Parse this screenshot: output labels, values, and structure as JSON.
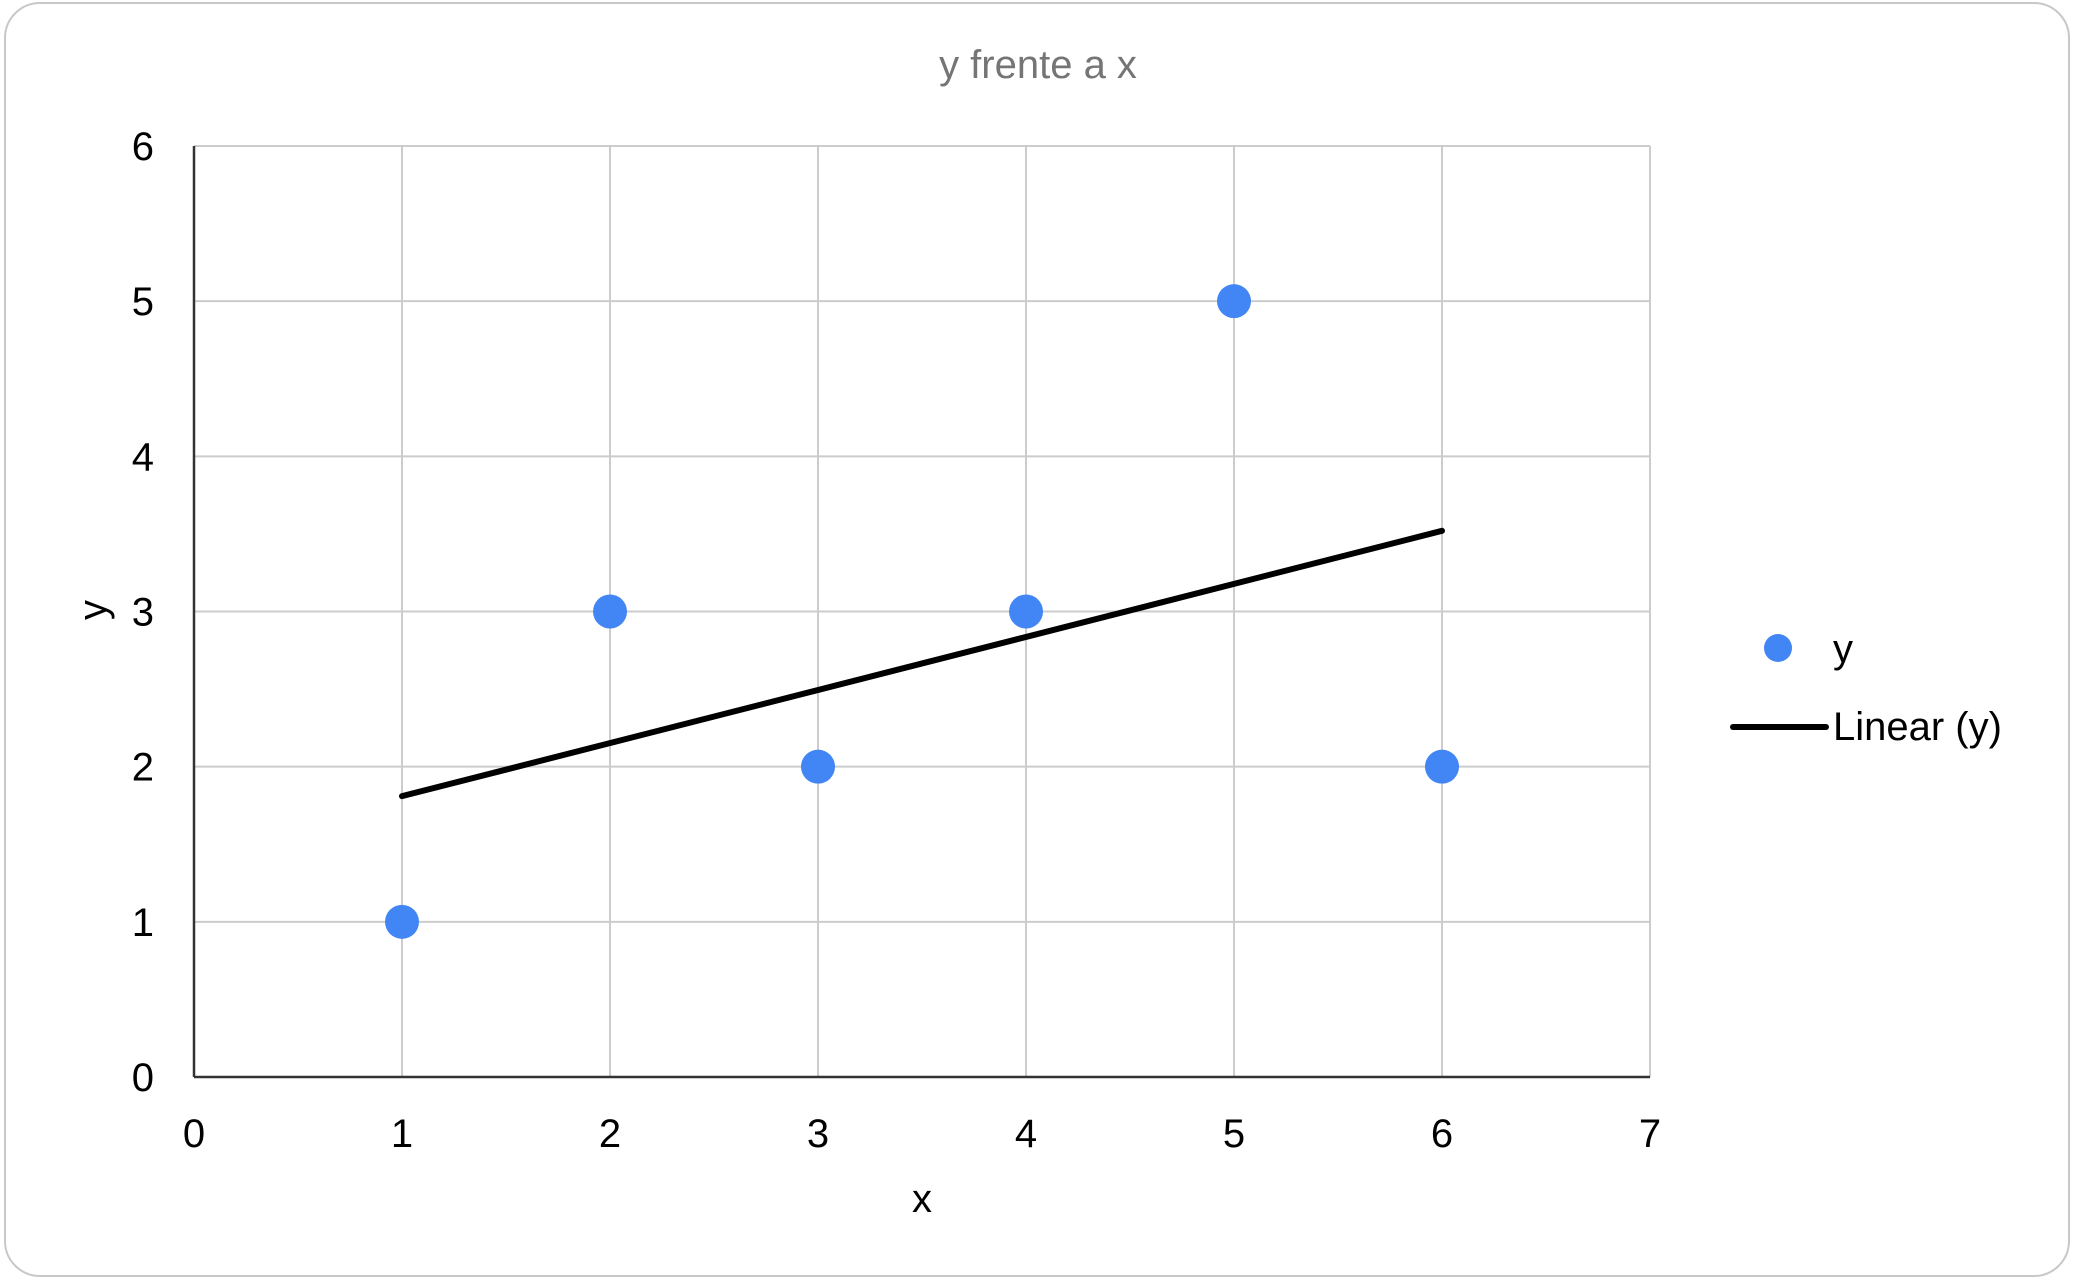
{
  "chart_data": {
    "type": "scatter",
    "title": "y frente a x",
    "xlabel": "x",
    "ylabel": "y",
    "xlim": [
      0,
      7
    ],
    "ylim": [
      0,
      6
    ],
    "xticks": [
      0,
      1,
      2,
      3,
      4,
      5,
      6,
      7
    ],
    "yticks": [
      0,
      1,
      2,
      3,
      4,
      5,
      6
    ],
    "grid": true,
    "legend_position": "right",
    "series": [
      {
        "name": "y",
        "kind": "scatter",
        "color": "#4285F4",
        "x": [
          1,
          2,
          3,
          4,
          5,
          6
        ],
        "y": [
          1,
          3,
          2,
          3,
          5,
          2
        ]
      },
      {
        "name": "Linear (y)",
        "kind": "trendline",
        "color": "#000000",
        "x": [
          1,
          6
        ],
        "y": [
          1.81,
          3.52
        ]
      }
    ]
  }
}
